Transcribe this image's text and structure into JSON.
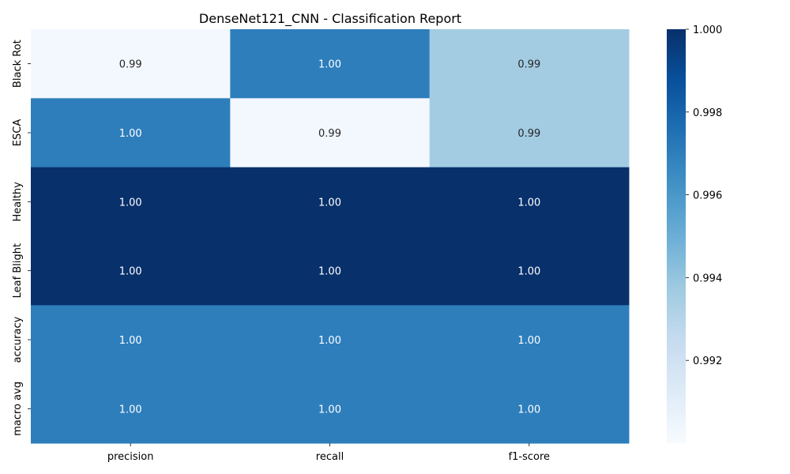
{
  "chart_data": {
    "type": "heatmap",
    "title": "DenseNet121_CNN - Classification Report",
    "xlabel": "",
    "ylabel": "",
    "columns": [
      "precision",
      "recall",
      "f1-score"
    ],
    "rows": [
      "Black Rot",
      "ESCA",
      "Healthy",
      "Leaf Blight",
      "accuracy",
      "macro avg"
    ],
    "values": [
      [
        0.9902,
        0.997,
        0.9936
      ],
      [
        0.997,
        0.9902,
        0.9936
      ],
      [
        1.0,
        1.0,
        1.0
      ],
      [
        1.0,
        1.0,
        1.0
      ],
      [
        0.997,
        0.997,
        0.997
      ],
      [
        0.997,
        0.997,
        0.997
      ]
    ],
    "annotations": [
      [
        "0.99",
        "1.00",
        "0.99"
      ],
      [
        "1.00",
        "0.99",
        "0.99"
      ],
      [
        "1.00",
        "1.00",
        "1.00"
      ],
      [
        "1.00",
        "1.00",
        "1.00"
      ],
      [
        "1.00",
        "1.00",
        "1.00"
      ],
      [
        "1.00",
        "1.00",
        "1.00"
      ]
    ],
    "colormap": "Blues",
    "colorbar": {
      "vmin": 0.99,
      "vmax": 1.0,
      "ticks": [
        0.992,
        0.994,
        0.996,
        0.998,
        1.0
      ],
      "tick_labels": [
        "0.992",
        "0.994",
        "0.996",
        "0.998",
        "1.000"
      ]
    }
  }
}
